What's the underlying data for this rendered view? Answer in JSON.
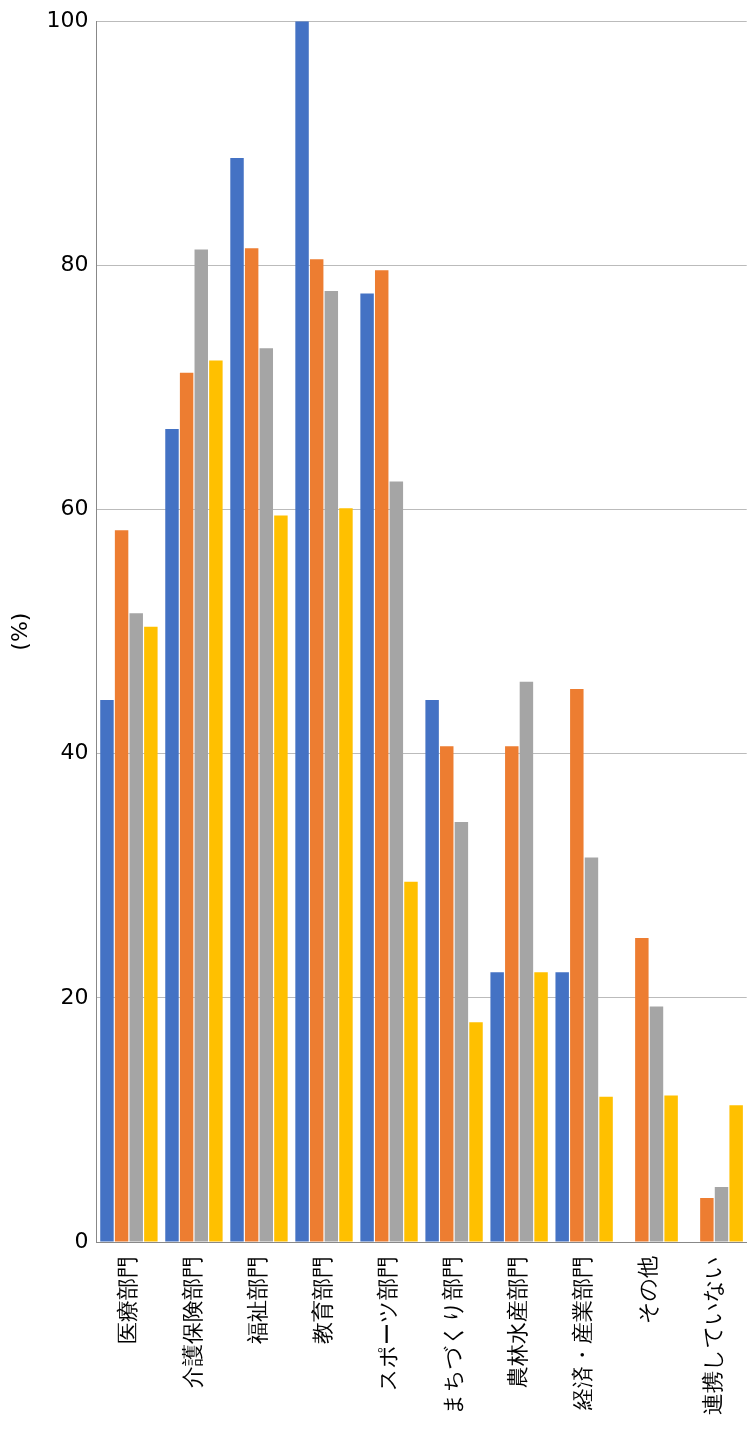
{
  "chart_data": {
    "type": "bar",
    "ylabel": "(%)",
    "categories": [
      "医療部門",
      "介護保険部門",
      "福祉部門",
      "教育部門",
      "スポーツ部門",
      "まちづくり部門",
      "農林水産部門",
      "経済・産業部門",
      "その他",
      "連携していない"
    ],
    "series": [
      {
        "color": "#4472c4",
        "values": [
          44.4,
          66.6,
          88.8,
          100,
          77.7,
          44.4,
          22.1,
          22.1,
          0,
          0
        ]
      },
      {
        "color": "#ed7d31",
        "values": [
          58.3,
          71.2,
          81.4,
          80.5,
          79.6,
          40.6,
          40.6,
          45.3,
          24.9,
          3.6
        ]
      },
      {
        "color": "#a5a5a5",
        "values": [
          51.5,
          81.3,
          73.2,
          77.9,
          62.3,
          34.4,
          45.9,
          31.5,
          19.3,
          4.5
        ]
      },
      {
        "color": "#ffc000",
        "values": [
          50.4,
          72.2,
          59.5,
          60.1,
          29.5,
          18.0,
          22.1,
          11.9,
          12.0,
          11.2
        ]
      }
    ],
    "ylim": [
      0,
      100
    ],
    "yticks": [
      0,
      20,
      40,
      60,
      80,
      100
    ],
    "grid": "y",
    "legend": false
  }
}
